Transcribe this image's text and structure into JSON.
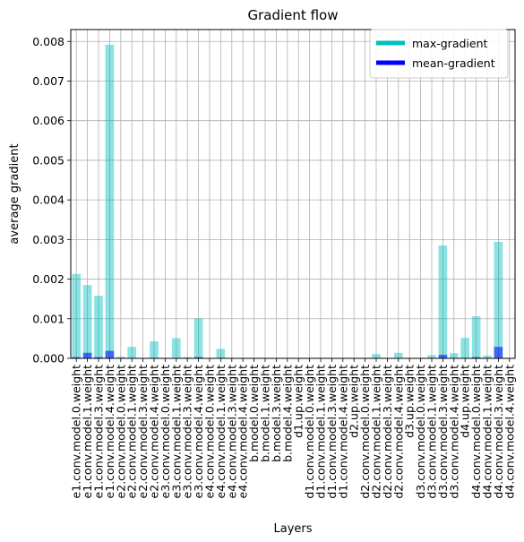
{
  "chart_data": {
    "type": "bar",
    "title": "Gradient flow",
    "xlabel": "Layers",
    "ylabel": "average gradient",
    "ylim": [
      0,
      0.0083
    ],
    "yticks": [
      "0.000",
      "0.001",
      "0.002",
      "0.003",
      "0.004",
      "0.005",
      "0.006",
      "0.007",
      "0.008"
    ],
    "ytick_values": [
      0,
      0.001,
      0.002,
      0.003,
      0.004,
      0.005,
      0.006,
      0.007,
      0.008
    ],
    "grid": true,
    "legend_position": "top-right",
    "categories": [
      "e1.conv.model.0.weight",
      "e1.conv.model.1.weight",
      "e1.conv.model.3.weight",
      "e1.conv.model.4.weight",
      "e2.conv.model.0.weight",
      "e2.conv.model.1.weight",
      "e2.conv.model.3.weight",
      "e2.conv.model.4.weight",
      "e3.conv.model.0.weight",
      "e3.conv.model.1.weight",
      "e3.conv.model.3.weight",
      "e3.conv.model.4.weight",
      "e4.conv.model.0.weight",
      "e4.conv.model.1.weight",
      "e4.conv.model.3.weight",
      "e4.conv.model.4.weight",
      "b.model.0.weight",
      "b.model.1.weight",
      "b.model.3.weight",
      "b.model.4.weight",
      "d1.up.weight",
      "d1.conv.model.0.weight",
      "d1.conv.model.1.weight",
      "d1.conv.model.3.weight",
      "d1.conv.model.4.weight",
      "d2.up.weight",
      "d2.conv.model.0.weight",
      "d2.conv.model.1.weight",
      "d2.conv.model.3.weight",
      "d2.conv.model.4.weight",
      "d3.up.weight",
      "d3.conv.model.0.weight",
      "d3.conv.model.1.weight",
      "d3.conv.model.3.weight",
      "d3.conv.model.4.weight",
      "d4.up.weight",
      "d4.conv.model.0.weight",
      "d4.conv.model.1.weight",
      "d4.conv.model.3.weight",
      "d4.conv.model.4.weight"
    ],
    "series": [
      {
        "name": "max-gradient",
        "color": "#00bfbf",
        "alpha": 0.45,
        "values": [
          0.00213,
          0.00185,
          0.00158,
          0.00792,
          4e-05,
          0.00029,
          1e-05,
          0.00043,
          1e-05,
          0.00051,
          3e-05,
          0.00101,
          1e-05,
          0.00024,
          5e-06,
          5e-06,
          5e-06,
          5e-06,
          5e-06,
          5e-06,
          5e-06,
          5e-06,
          5e-06,
          5e-06,
          5e-06,
          5e-06,
          5e-06,
          0.00011,
          5e-06,
          0.00014,
          5e-06,
          5e-06,
          8e-05,
          0.00285,
          0.00013,
          0.00052,
          0.00106,
          7e-05,
          0.00294,
          1e-05
        ]
      },
      {
        "name": "mean-gradient",
        "color": "#0000ff",
        "alpha": 0.55,
        "values": [
          3e-05,
          0.00014,
          3e-05,
          0.00019,
          2e-06,
          5e-06,
          1e-06,
          8e-06,
          1e-06,
          1e-05,
          2e-06,
          3e-05,
          1e-06,
          5e-06,
          0,
          0,
          0,
          0,
          0,
          0,
          0,
          0,
          0,
          0,
          0,
          0,
          0,
          2e-06,
          0,
          3e-06,
          0,
          0,
          2e-06,
          9e-05,
          3e-06,
          1e-05,
          3e-05,
          1e-06,
          0.00029,
          0
        ]
      }
    ]
  },
  "legend": {
    "items": [
      {
        "label": "max-gradient",
        "color": "#00bfbf"
      },
      {
        "label": "mean-gradient",
        "color": "#0000ff"
      }
    ]
  }
}
